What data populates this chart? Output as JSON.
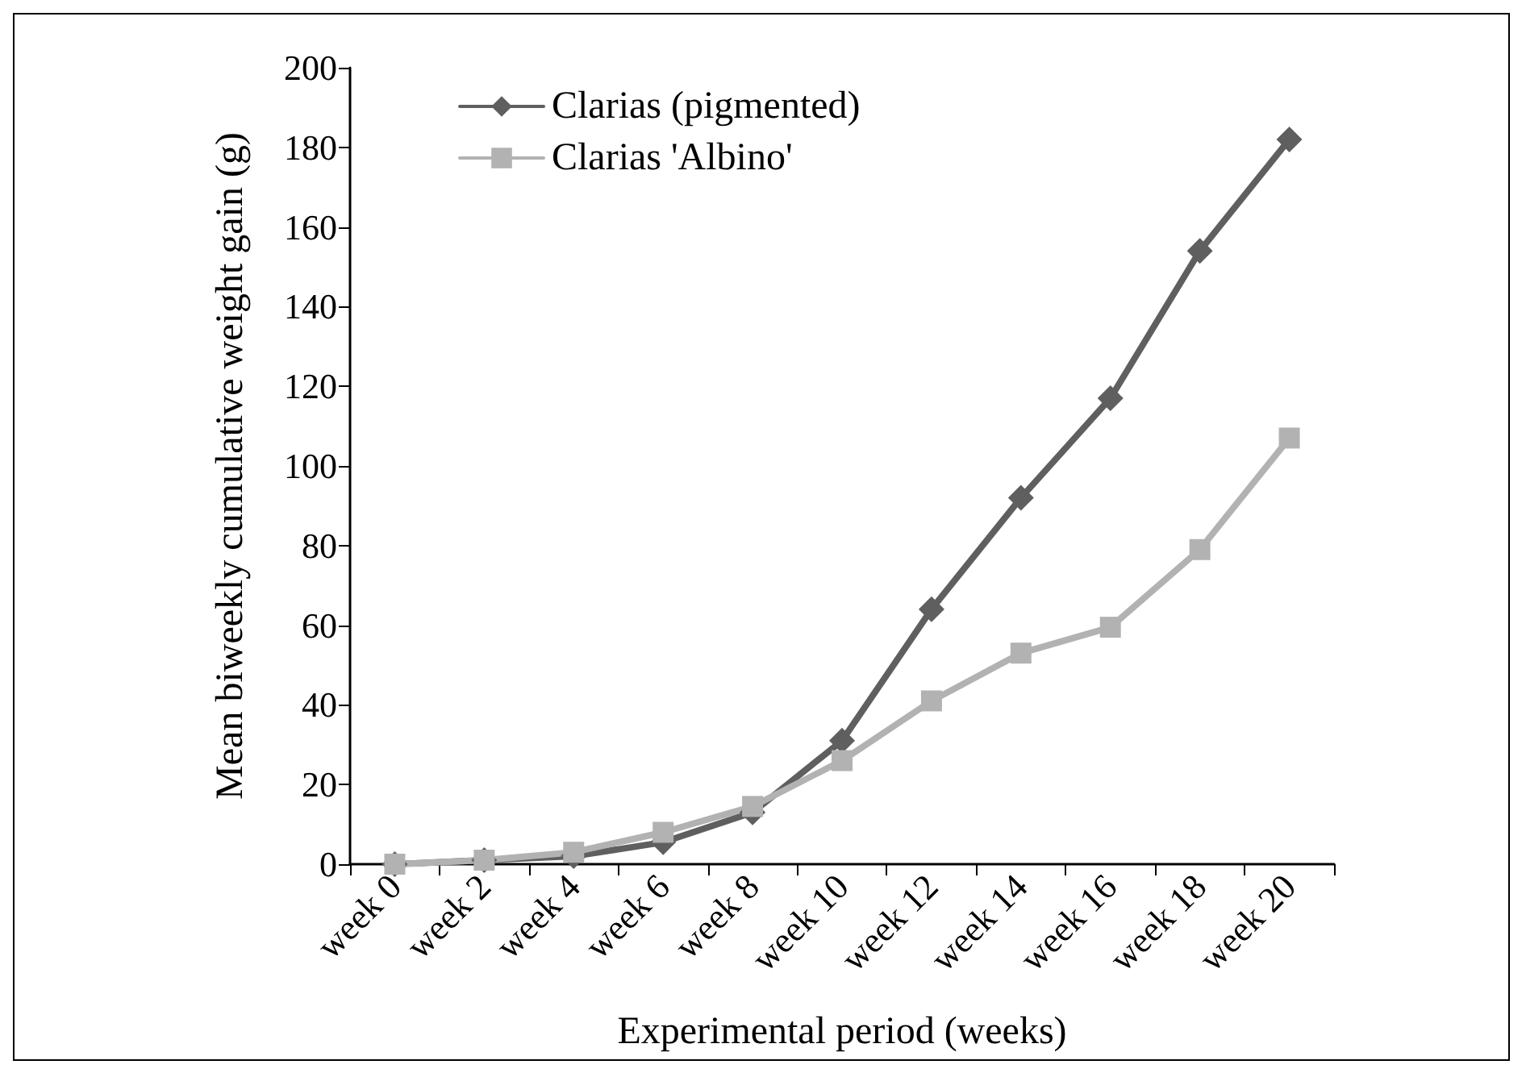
{
  "chart_data": {
    "type": "line",
    "xlabel": "Experimental period (weeks)",
    "ylabel": "Mean biweekly cumulative weight gain (g)",
    "categories": [
      "week 0",
      "week 2",
      "week 4",
      "week 6",
      "week 8",
      "week 10",
      "week 12",
      "week 14",
      "week 16",
      "week 18",
      "week 20"
    ],
    "series": [
      {
        "name": "Clarias (pigmented)",
        "color": "#5f5f5f",
        "marker": "diamond",
        "values": [
          0,
          1,
          2,
          5.5,
          13,
          31,
          64,
          92,
          117,
          154,
          182
        ]
      },
      {
        "name": "Clarias 'Albino'",
        "color": "#b2b2b2",
        "marker": "square",
        "values": [
          0,
          1,
          3,
          8,
          14.5,
          26,
          41,
          53,
          59.5,
          79,
          107
        ]
      }
    ],
    "ylim": [
      0,
      200
    ],
    "yticks": [
      0,
      20,
      40,
      60,
      80,
      100,
      120,
      140,
      160,
      180,
      200
    ],
    "grid": false,
    "legend": "top left"
  }
}
